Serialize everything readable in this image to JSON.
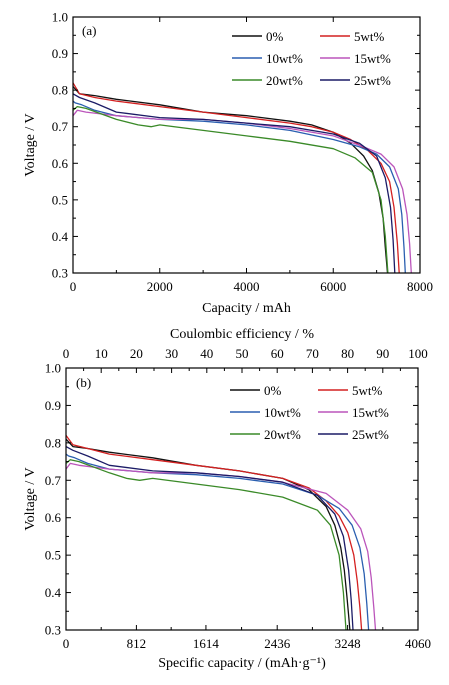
{
  "chart_data": [
    {
      "panel": "(a)",
      "type": "line",
      "xlabel": "Capacity / mAh",
      "ylabel": "Voltage / V",
      "xlim": [
        0,
        8000
      ],
      "ylim": [
        0.3,
        1.0
      ],
      "xticks": [
        "0",
        "2000",
        "4000",
        "6000",
        "8000"
      ],
      "yticks": [
        "0.3",
        "0.4",
        "0.5",
        "0.6",
        "0.7",
        "0.8",
        "0.9",
        "1.0"
      ],
      "legend_position": "top-right",
      "series": [
        {
          "name": "0%",
          "color": "#111111",
          "x": [
            0,
            150,
            500,
            1000,
            2000,
            3000,
            4000,
            5000,
            5500,
            6000,
            6400,
            6700,
            6900,
            7050,
            7150,
            7200,
            7250
          ],
          "y": [
            0.81,
            0.79,
            0.785,
            0.775,
            0.76,
            0.74,
            0.73,
            0.715,
            0.705,
            0.685,
            0.655,
            0.62,
            0.58,
            0.52,
            0.45,
            0.37,
            0.3
          ]
        },
        {
          "name": "5wt%",
          "color": "#d42020",
          "x": [
            0,
            150,
            500,
            1000,
            2000,
            3000,
            4000,
            5000,
            5500,
            6000,
            6400,
            6800,
            7100,
            7300,
            7400,
            7480,
            7520
          ],
          "y": [
            0.82,
            0.79,
            0.78,
            0.77,
            0.755,
            0.74,
            0.725,
            0.71,
            0.7,
            0.685,
            0.665,
            0.635,
            0.6,
            0.55,
            0.48,
            0.38,
            0.3
          ]
        },
        {
          "name": "10wt%",
          "color": "#2a5fb0",
          "x": [
            0,
            50,
            200,
            500,
            1000,
            2000,
            3000,
            4000,
            5000,
            6000,
            6600,
            7000,
            7300,
            7500,
            7580,
            7630,
            7660
          ],
          "y": [
            0.77,
            0.765,
            0.76,
            0.745,
            0.73,
            0.72,
            0.715,
            0.705,
            0.69,
            0.665,
            0.645,
            0.625,
            0.59,
            0.53,
            0.46,
            0.37,
            0.3
          ]
        },
        {
          "name": "15wt%",
          "color": "#bb55bb",
          "x": [
            0,
            100,
            300,
            1000,
            2000,
            3000,
            4000,
            5000,
            6000,
            6700,
            7100,
            7400,
            7600,
            7700,
            7760,
            7800
          ],
          "y": [
            0.73,
            0.745,
            0.74,
            0.73,
            0.72,
            0.72,
            0.71,
            0.695,
            0.675,
            0.645,
            0.625,
            0.59,
            0.53,
            0.46,
            0.38,
            0.3
          ]
        },
        {
          "name": "20wt%",
          "color": "#3a8a28",
          "x": [
            0,
            100,
            300,
            1000,
            1500,
            1800,
            2000,
            3000,
            4000,
            5000,
            6000,
            6500,
            6900,
            7100,
            7200,
            7260
          ],
          "y": [
            0.745,
            0.755,
            0.75,
            0.72,
            0.705,
            0.7,
            0.705,
            0.69,
            0.675,
            0.66,
            0.64,
            0.615,
            0.575,
            0.5,
            0.4,
            0.3
          ]
        },
        {
          "name": "25wt%",
          "color": "#1b1b66",
          "x": [
            0,
            150,
            500,
            1000,
            2000,
            3000,
            4000,
            5000,
            6000,
            6600,
            7000,
            7200,
            7320,
            7380,
            7420
          ],
          "y": [
            0.79,
            0.78,
            0.765,
            0.74,
            0.725,
            0.72,
            0.71,
            0.7,
            0.68,
            0.655,
            0.62,
            0.56,
            0.48,
            0.39,
            0.3
          ]
        }
      ]
    },
    {
      "panel": "(b)",
      "type": "line",
      "xlabel": "Specific capacity / (mAh·g⁻¹)",
      "x2label": "Coulombic efficiency / %",
      "ylabel": "Voltage / V",
      "xlim": [
        0,
        4060
      ],
      "x2lim": [
        0,
        100
      ],
      "ylim": [
        0.3,
        1.0
      ],
      "xticks": [
        "0",
        "812",
        "1614",
        "2436",
        "3248",
        "4060"
      ],
      "x2ticks": [
        "0",
        "10",
        "20",
        "30",
        "40",
        "50",
        "60",
        "70",
        "80",
        "90",
        "100"
      ],
      "yticks": [
        "0.3",
        "0.4",
        "0.5",
        "0.6",
        "0.7",
        "0.8",
        "0.9",
        "1.0"
      ],
      "legend_position": "top-right",
      "series": [
        {
          "name": "0%",
          "color": "#111111",
          "x": [
            0,
            80,
            250,
            500,
            1000,
            1500,
            2000,
            2500,
            2800,
            3000,
            3100,
            3170,
            3210,
            3240,
            3260,
            3275
          ],
          "y": [
            0.81,
            0.79,
            0.785,
            0.775,
            0.76,
            0.74,
            0.725,
            0.705,
            0.675,
            0.63,
            0.58,
            0.52,
            0.46,
            0.39,
            0.34,
            0.3
          ]
        },
        {
          "name": "5wt%",
          "color": "#d42020",
          "x": [
            0,
            80,
            250,
            500,
            1000,
            1500,
            2000,
            2500,
            2800,
            3000,
            3150,
            3250,
            3320,
            3360,
            3390,
            3410
          ],
          "y": [
            0.82,
            0.795,
            0.785,
            0.77,
            0.755,
            0.74,
            0.725,
            0.705,
            0.68,
            0.645,
            0.605,
            0.56,
            0.5,
            0.43,
            0.36,
            0.3
          ]
        },
        {
          "name": "10wt%",
          "color": "#2a5fb0",
          "x": [
            0,
            30,
            100,
            250,
            500,
            1000,
            1500,
            2000,
            2500,
            2900,
            3150,
            3300,
            3390,
            3440,
            3470,
            3490
          ],
          "y": [
            0.77,
            0.765,
            0.76,
            0.745,
            0.73,
            0.72,
            0.715,
            0.705,
            0.69,
            0.66,
            0.625,
            0.58,
            0.52,
            0.45,
            0.37,
            0.3
          ]
        },
        {
          "name": "15wt%",
          "color": "#bb55bb",
          "x": [
            0,
            50,
            150,
            500,
            1000,
            1500,
            2000,
            2500,
            3000,
            3250,
            3400,
            3480,
            3520,
            3550,
            3570
          ],
          "y": [
            0.73,
            0.745,
            0.74,
            0.73,
            0.72,
            0.72,
            0.71,
            0.695,
            0.665,
            0.62,
            0.57,
            0.51,
            0.44,
            0.36,
            0.3
          ]
        },
        {
          "name": "20wt%",
          "color": "#3a8a28",
          "x": [
            0,
            50,
            150,
            500,
            700,
            850,
            1000,
            1500,
            2000,
            2500,
            2900,
            3050,
            3150,
            3200,
            3230
          ],
          "y": [
            0.745,
            0.755,
            0.75,
            0.72,
            0.705,
            0.7,
            0.705,
            0.69,
            0.675,
            0.655,
            0.62,
            0.58,
            0.5,
            0.4,
            0.3
          ]
        },
        {
          "name": "25wt%",
          "color": "#1b1b66",
          "x": [
            0,
            80,
            250,
            500,
            1000,
            1500,
            2000,
            2500,
            2900,
            3100,
            3200,
            3260,
            3290,
            3310
          ],
          "y": [
            0.79,
            0.78,
            0.765,
            0.74,
            0.725,
            0.72,
            0.71,
            0.695,
            0.66,
            0.61,
            0.55,
            0.46,
            0.38,
            0.3
          ]
        }
      ]
    }
  ]
}
